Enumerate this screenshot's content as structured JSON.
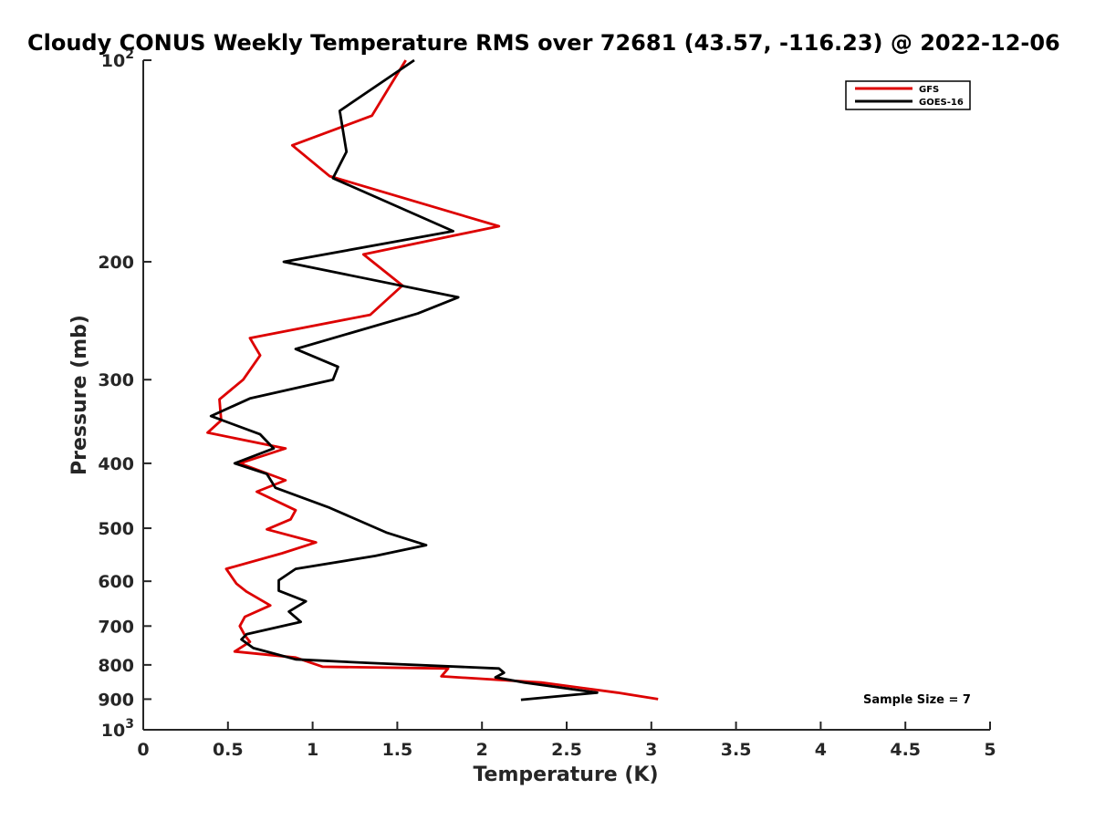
{
  "chart_data": {
    "type": "line",
    "title": "Cloudy CONUS Weekly Temperature RMS over 72681 (43.57, -116.23) @ 2022-12-06",
    "xlabel": "Temperature (K)",
    "ylabel": "Pressure (mb)",
    "xlim": [
      0,
      5
    ],
    "ylim": [
      100,
      1000
    ],
    "y_scale": "log",
    "y_reversed": true,
    "x_ticks": [
      0,
      0.5,
      1,
      1.5,
      2,
      2.5,
      3,
      3.5,
      4,
      4.5,
      5
    ],
    "x_tick_labels": [
      "0",
      "0.5",
      "1",
      "1.5",
      "2",
      "2.5",
      "3",
      "3.5",
      "4",
      "4.5",
      "5"
    ],
    "y_ticks": [
      100,
      200,
      300,
      400,
      500,
      600,
      700,
      800,
      900,
      1000
    ],
    "y_tick_labels": [
      {
        "base": "10",
        "exp": "2"
      },
      {
        "base": "200",
        "exp": ""
      },
      {
        "base": "300",
        "exp": ""
      },
      {
        "base": "400",
        "exp": ""
      },
      {
        "base": "500",
        "exp": ""
      },
      {
        "base": "600",
        "exp": ""
      },
      {
        "base": "700",
        "exp": ""
      },
      {
        "base": "800",
        "exp": ""
      },
      {
        "base": "900",
        "exp": ""
      },
      {
        "base": "10",
        "exp": "3"
      }
    ],
    "grid": false,
    "legend_position": "top-right",
    "annotation": "Sample Size = 7",
    "series": [
      {
        "name": "GFS",
        "color": "#dd0000",
        "points": [
          [
            1.55,
            100
          ],
          [
            1.45,
            110
          ],
          [
            1.35,
            121
          ],
          [
            0.88,
            134
          ],
          [
            1.1,
            149
          ],
          [
            2.1,
            177
          ],
          [
            1.3,
            195
          ],
          [
            1.53,
            217
          ],
          [
            1.34,
            240
          ],
          [
            0.63,
            260
          ],
          [
            0.69,
            276
          ],
          [
            0.59,
            300
          ],
          [
            0.45,
            321
          ],
          [
            0.46,
            345
          ],
          [
            0.38,
            360
          ],
          [
            0.84,
            380
          ],
          [
            0.57,
            400
          ],
          [
            0.84,
            424
          ],
          [
            0.67,
            441
          ],
          [
            0.9,
            470
          ],
          [
            0.87,
            485
          ],
          [
            0.73,
            502
          ],
          [
            1.02,
            525
          ],
          [
            0.82,
            545
          ],
          [
            0.49,
            575
          ],
          [
            0.55,
            605
          ],
          [
            0.61,
            622
          ],
          [
            0.75,
            652
          ],
          [
            0.6,
            678
          ],
          [
            0.57,
            700
          ],
          [
            0.6,
            723
          ],
          [
            0.63,
            739
          ],
          [
            0.54,
            764
          ],
          [
            0.9,
            780
          ],
          [
            1.06,
            805
          ],
          [
            1.8,
            810
          ],
          [
            1.76,
            832
          ],
          [
            2.35,
            850
          ],
          [
            2.8,
            880
          ],
          [
            3.04,
            900
          ]
        ]
      },
      {
        "name": "GOES-16",
        "color": "#000000",
        "points": [
          [
            1.6,
            100
          ],
          [
            1.16,
            119
          ],
          [
            1.2,
            137
          ],
          [
            1.12,
            150
          ],
          [
            1.83,
            180
          ],
          [
            0.83,
            200
          ],
          [
            1.86,
            226
          ],
          [
            1.62,
            239
          ],
          [
            0.9,
            270
          ],
          [
            1.15,
            287
          ],
          [
            1.12,
            300
          ],
          [
            0.63,
            320
          ],
          [
            0.4,
            340
          ],
          [
            0.69,
            362
          ],
          [
            0.77,
            380
          ],
          [
            0.54,
            400
          ],
          [
            0.73,
            415
          ],
          [
            0.78,
            435
          ],
          [
            1.1,
            466
          ],
          [
            1.44,
            508
          ],
          [
            1.67,
            530
          ],
          [
            1.37,
            550
          ],
          [
            0.9,
            575
          ],
          [
            0.8,
            598
          ],
          [
            0.8,
            620
          ],
          [
            0.96,
            643
          ],
          [
            0.86,
            666
          ],
          [
            0.93,
            690
          ],
          [
            0.61,
            720
          ],
          [
            0.58,
            733
          ],
          [
            0.65,
            755
          ],
          [
            0.9,
            785
          ],
          [
            1.35,
            795
          ],
          [
            2.1,
            810
          ],
          [
            2.13,
            822
          ],
          [
            2.08,
            835
          ],
          [
            2.25,
            850
          ],
          [
            2.68,
            880
          ],
          [
            2.23,
            902
          ]
        ]
      }
    ]
  }
}
